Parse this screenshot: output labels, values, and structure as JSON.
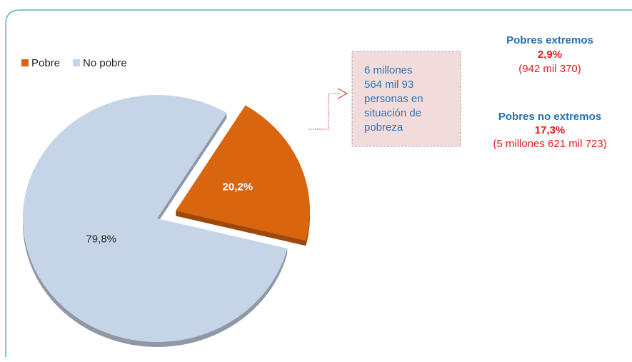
{
  "chart_data": {
    "type": "pie",
    "categories": [
      "Pobre",
      "No pobre"
    ],
    "values": [
      20.2,
      79.8
    ],
    "value_labels": [
      "20,2%",
      "79,8%"
    ],
    "colors": [
      "#d9650f",
      "#c6d4e7"
    ],
    "legend": "top-left",
    "annotations": {
      "box_lines": [
        "6 millones",
        "564 mil  93",
        "personas  en",
        "situación de",
        "pobreza"
      ],
      "extreme_title": "Pobres extremos",
      "extreme_pct": "2,9%",
      "extreme_count": "(942 mil 370)",
      "nonextreme_title": "Pobres no extremos",
      "nonextreme_pct": "17,3%",
      "nonextreme_count": "(5 millones  621 mil 723)"
    }
  }
}
